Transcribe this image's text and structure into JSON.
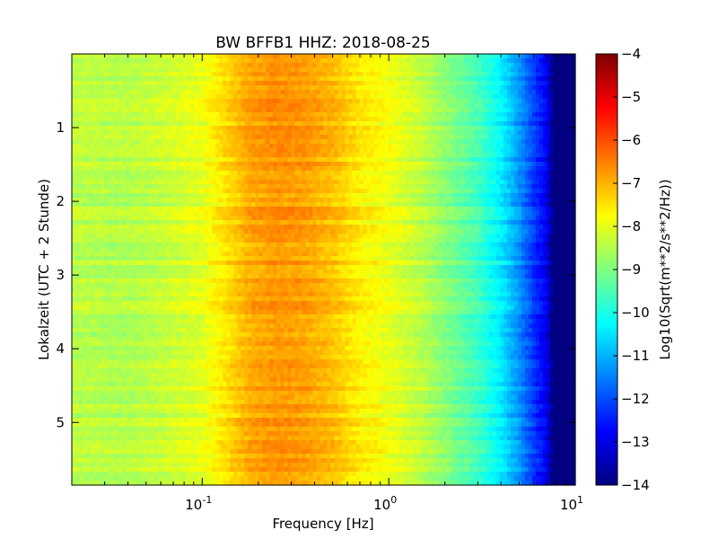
{
  "chart_data": {
    "type": "heatmap",
    "title": "BW BFFB1 HHZ: 2018-08-25",
    "xlabel": "Frequency [Hz]",
    "ylabel": "Lokalzeit (UTC + 2 Stunde)",
    "x_scale": "log",
    "xlim": [
      0.02,
      10
    ],
    "ylim": [
      5.85,
      0
    ],
    "x_ticks": [
      {
        "value": 0.1,
        "base": "10",
        "exp": "-1"
      },
      {
        "value": 1,
        "base": "10",
        "exp": "0"
      },
      {
        "value": 10,
        "base": "10",
        "exp": "1"
      }
    ],
    "y_ticks": [
      1,
      2,
      3,
      4,
      5
    ],
    "colorbar": {
      "label": "Log10(Sqrt(m**2/s**2/Hz))",
      "min": -14,
      "max": -4,
      "ticks": [
        -4,
        -5,
        -6,
        -7,
        -8,
        -9,
        -10,
        -11,
        -12,
        -13,
        -14
      ],
      "colormap": "jet",
      "colors": [
        "#00007f",
        "#0000ff",
        "#007fff",
        "#00ffff",
        "#7fff7f",
        "#ffff00",
        "#ff7f00",
        "#ff0000",
        "#7f0000"
      ]
    },
    "spectrum_profile": {
      "frequency_hz": [
        0.02,
        0.04,
        0.06,
        0.1,
        0.13,
        0.18,
        0.25,
        0.35,
        0.5,
        0.7,
        1.0,
        1.5,
        2.0,
        3.0,
        4.0,
        5.0,
        6.0,
        7.0,
        7.6,
        10.0
      ],
      "log10_amplitude": [
        -8.4,
        -8.5,
        -8.3,
        -8.0,
        -7.5,
        -6.9,
        -6.7,
        -6.8,
        -7.1,
        -7.6,
        -7.9,
        -8.4,
        -8.9,
        -9.6,
        -10.4,
        -11.3,
        -12.2,
        -12.9,
        -14.0,
        -14.0
      ]
    },
    "grid": false,
    "legend": "none"
  }
}
